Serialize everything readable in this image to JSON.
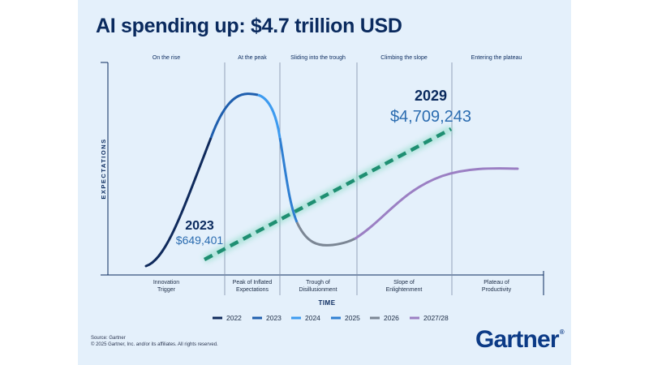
{
  "title": "AI spending up: $4.7 trillion USD",
  "footer": {
    "source": "Source: Gartner",
    "copyright": "© 2025 Gartner, Inc. and/or its affiliates. All rights reserved."
  },
  "logo": {
    "text": "Gartner",
    "mark": "®"
  },
  "chart_data": {
    "type": "line",
    "title": "AI spending up: $4.7 trillion USD",
    "xlabel": "TIME",
    "ylabel": "EXPECTATIONS",
    "phases": [
      {
        "header": "On the rise",
        "stage_line1": "Innovation",
        "stage_line2": "Trigger"
      },
      {
        "header": "At the peak",
        "stage_line1": "Peak of Inflated",
        "stage_line2": "Expectations"
      },
      {
        "header": "Sliding into the trough",
        "stage_line1": "Trough of",
        "stage_line2": "Disillusionment"
      },
      {
        "header": "Climbing the slope",
        "stage_line1": "Slope of",
        "stage_line2": "Enlightenment"
      },
      {
        "header": "Entering the plateau",
        "stage_line1": "Plateau of",
        "stage_line2": "Productivity"
      }
    ],
    "legend_position": "bottom",
    "legend": [
      {
        "label": "2022",
        "color": "#0f2a5c"
      },
      {
        "label": "2023",
        "color": "#1f5fae"
      },
      {
        "label": "2024",
        "color": "#3d9bf0"
      },
      {
        "label": "2025",
        "color": "#2f7fd2"
      },
      {
        "label": "2026",
        "color": "#7b8694"
      },
      {
        "label": "2027/28",
        "color": "#9b7fc3"
      }
    ],
    "spending": [
      {
        "year": "2023",
        "value": "$649,401"
      },
      {
        "year": "2029",
        "value": "$4,709,243"
      }
    ],
    "spending_trend_color": "#1f8f72",
    "grid": false
  }
}
